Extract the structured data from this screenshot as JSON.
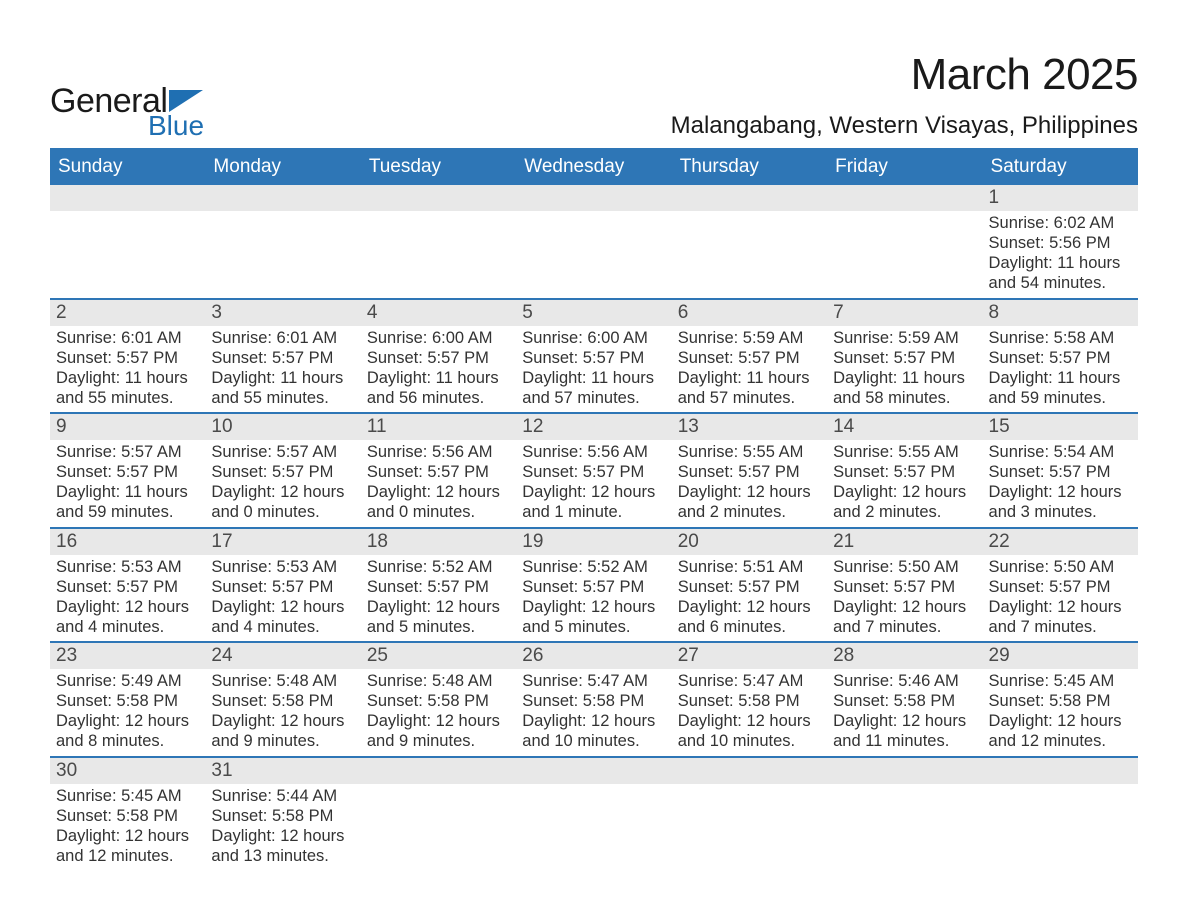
{
  "logo": {
    "text_general": "General",
    "text_blue": "Blue",
    "flag_color": "#1f6fb2"
  },
  "header": {
    "month_title": "March 2025",
    "location": "Malangabang, Western Visayas, Philippines"
  },
  "colors": {
    "header_bg": "#2e76b6",
    "header_text": "#ffffff",
    "daynum_bg": "#e8e8e8",
    "row_border": "#2e76b6",
    "body_text": "#333333",
    "title_text": "#1a1a1a"
  },
  "weekdays": [
    "Sunday",
    "Monday",
    "Tuesday",
    "Wednesday",
    "Thursday",
    "Friday",
    "Saturday"
  ],
  "weeks": [
    [
      {
        "day": "",
        "sunrise": "",
        "sunset": "",
        "daylight": ""
      },
      {
        "day": "",
        "sunrise": "",
        "sunset": "",
        "daylight": ""
      },
      {
        "day": "",
        "sunrise": "",
        "sunset": "",
        "daylight": ""
      },
      {
        "day": "",
        "sunrise": "",
        "sunset": "",
        "daylight": ""
      },
      {
        "day": "",
        "sunrise": "",
        "sunset": "",
        "daylight": ""
      },
      {
        "day": "",
        "sunrise": "",
        "sunset": "",
        "daylight": ""
      },
      {
        "day": "1",
        "sunrise": "Sunrise: 6:02 AM",
        "sunset": "Sunset: 5:56 PM",
        "daylight": "Daylight: 11 hours and 54 minutes."
      }
    ],
    [
      {
        "day": "2",
        "sunrise": "Sunrise: 6:01 AM",
        "sunset": "Sunset: 5:57 PM",
        "daylight": "Daylight: 11 hours and 55 minutes."
      },
      {
        "day": "3",
        "sunrise": "Sunrise: 6:01 AM",
        "sunset": "Sunset: 5:57 PM",
        "daylight": "Daylight: 11 hours and 55 minutes."
      },
      {
        "day": "4",
        "sunrise": "Sunrise: 6:00 AM",
        "sunset": "Sunset: 5:57 PM",
        "daylight": "Daylight: 11 hours and 56 minutes."
      },
      {
        "day": "5",
        "sunrise": "Sunrise: 6:00 AM",
        "sunset": "Sunset: 5:57 PM",
        "daylight": "Daylight: 11 hours and 57 minutes."
      },
      {
        "day": "6",
        "sunrise": "Sunrise: 5:59 AM",
        "sunset": "Sunset: 5:57 PM",
        "daylight": "Daylight: 11 hours and 57 minutes."
      },
      {
        "day": "7",
        "sunrise": "Sunrise: 5:59 AM",
        "sunset": "Sunset: 5:57 PM",
        "daylight": "Daylight: 11 hours and 58 minutes."
      },
      {
        "day": "8",
        "sunrise": "Sunrise: 5:58 AM",
        "sunset": "Sunset: 5:57 PM",
        "daylight": "Daylight: 11 hours and 59 minutes."
      }
    ],
    [
      {
        "day": "9",
        "sunrise": "Sunrise: 5:57 AM",
        "sunset": "Sunset: 5:57 PM",
        "daylight": "Daylight: 11 hours and 59 minutes."
      },
      {
        "day": "10",
        "sunrise": "Sunrise: 5:57 AM",
        "sunset": "Sunset: 5:57 PM",
        "daylight": "Daylight: 12 hours and 0 minutes."
      },
      {
        "day": "11",
        "sunrise": "Sunrise: 5:56 AM",
        "sunset": "Sunset: 5:57 PM",
        "daylight": "Daylight: 12 hours and 0 minutes."
      },
      {
        "day": "12",
        "sunrise": "Sunrise: 5:56 AM",
        "sunset": "Sunset: 5:57 PM",
        "daylight": "Daylight: 12 hours and 1 minute."
      },
      {
        "day": "13",
        "sunrise": "Sunrise: 5:55 AM",
        "sunset": "Sunset: 5:57 PM",
        "daylight": "Daylight: 12 hours and 2 minutes."
      },
      {
        "day": "14",
        "sunrise": "Sunrise: 5:55 AM",
        "sunset": "Sunset: 5:57 PM",
        "daylight": "Daylight: 12 hours and 2 minutes."
      },
      {
        "day": "15",
        "sunrise": "Sunrise: 5:54 AM",
        "sunset": "Sunset: 5:57 PM",
        "daylight": "Daylight: 12 hours and 3 minutes."
      }
    ],
    [
      {
        "day": "16",
        "sunrise": "Sunrise: 5:53 AM",
        "sunset": "Sunset: 5:57 PM",
        "daylight": "Daylight: 12 hours and 4 minutes."
      },
      {
        "day": "17",
        "sunrise": "Sunrise: 5:53 AM",
        "sunset": "Sunset: 5:57 PM",
        "daylight": "Daylight: 12 hours and 4 minutes."
      },
      {
        "day": "18",
        "sunrise": "Sunrise: 5:52 AM",
        "sunset": "Sunset: 5:57 PM",
        "daylight": "Daylight: 12 hours and 5 minutes."
      },
      {
        "day": "19",
        "sunrise": "Sunrise: 5:52 AM",
        "sunset": "Sunset: 5:57 PM",
        "daylight": "Daylight: 12 hours and 5 minutes."
      },
      {
        "day": "20",
        "sunrise": "Sunrise: 5:51 AM",
        "sunset": "Sunset: 5:57 PM",
        "daylight": "Daylight: 12 hours and 6 minutes."
      },
      {
        "day": "21",
        "sunrise": "Sunrise: 5:50 AM",
        "sunset": "Sunset: 5:57 PM",
        "daylight": "Daylight: 12 hours and 7 minutes."
      },
      {
        "day": "22",
        "sunrise": "Sunrise: 5:50 AM",
        "sunset": "Sunset: 5:57 PM",
        "daylight": "Daylight: 12 hours and 7 minutes."
      }
    ],
    [
      {
        "day": "23",
        "sunrise": "Sunrise: 5:49 AM",
        "sunset": "Sunset: 5:58 PM",
        "daylight": "Daylight: 12 hours and 8 minutes."
      },
      {
        "day": "24",
        "sunrise": "Sunrise: 5:48 AM",
        "sunset": "Sunset: 5:58 PM",
        "daylight": "Daylight: 12 hours and 9 minutes."
      },
      {
        "day": "25",
        "sunrise": "Sunrise: 5:48 AM",
        "sunset": "Sunset: 5:58 PM",
        "daylight": "Daylight: 12 hours and 9 minutes."
      },
      {
        "day": "26",
        "sunrise": "Sunrise: 5:47 AM",
        "sunset": "Sunset: 5:58 PM",
        "daylight": "Daylight: 12 hours and 10 minutes."
      },
      {
        "day": "27",
        "sunrise": "Sunrise: 5:47 AM",
        "sunset": "Sunset: 5:58 PM",
        "daylight": "Daylight: 12 hours and 10 minutes."
      },
      {
        "day": "28",
        "sunrise": "Sunrise: 5:46 AM",
        "sunset": "Sunset: 5:58 PM",
        "daylight": "Daylight: 12 hours and 11 minutes."
      },
      {
        "day": "29",
        "sunrise": "Sunrise: 5:45 AM",
        "sunset": "Sunset: 5:58 PM",
        "daylight": "Daylight: 12 hours and 12 minutes."
      }
    ],
    [
      {
        "day": "30",
        "sunrise": "Sunrise: 5:45 AM",
        "sunset": "Sunset: 5:58 PM",
        "daylight": "Daylight: 12 hours and 12 minutes."
      },
      {
        "day": "31",
        "sunrise": "Sunrise: 5:44 AM",
        "sunset": "Sunset: 5:58 PM",
        "daylight": "Daylight: 12 hours and 13 minutes."
      },
      {
        "day": "",
        "sunrise": "",
        "sunset": "",
        "daylight": ""
      },
      {
        "day": "",
        "sunrise": "",
        "sunset": "",
        "daylight": ""
      },
      {
        "day": "",
        "sunrise": "",
        "sunset": "",
        "daylight": ""
      },
      {
        "day": "",
        "sunrise": "",
        "sunset": "",
        "daylight": ""
      },
      {
        "day": "",
        "sunrise": "",
        "sunset": "",
        "daylight": ""
      }
    ]
  ]
}
